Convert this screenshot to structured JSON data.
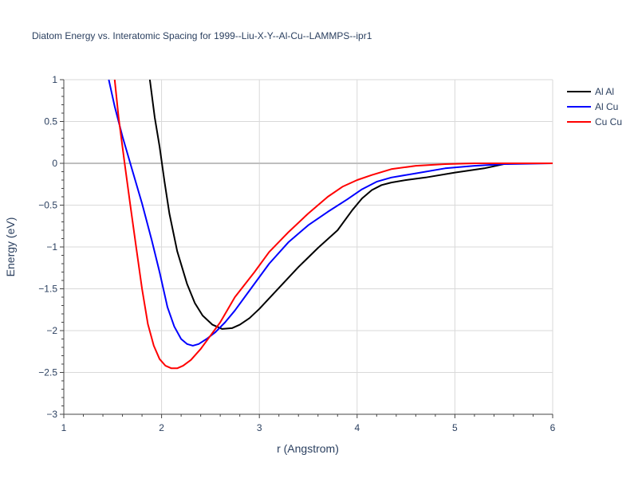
{
  "chart_data": {
    "type": "line",
    "title": "Diatom Energy vs. Interatomic Spacing for 1999--Liu-X-Y--Al-Cu--LAMMPS--ipr1",
    "xlabel": "r (Angstrom)",
    "ylabel": "Energy (eV)",
    "xlim": [
      1,
      6
    ],
    "ylim": [
      -3,
      1
    ],
    "xticks": [
      1,
      2,
      3,
      4,
      5,
      6
    ],
    "xtick_labels": [
      "1",
      "2",
      "3",
      "4",
      "5",
      "6"
    ],
    "yticks": [
      1,
      0.5,
      0,
      -0.5,
      -1,
      -1.5,
      -2,
      -2.5,
      -3
    ],
    "ytick_labels": [
      "1",
      "0.5",
      "0",
      "−0.5",
      "−1",
      "−1.5",
      "−2",
      "−2.5",
      "−3"
    ],
    "grid": true,
    "legend_position": "top-right",
    "series": [
      {
        "name": "Al Al",
        "color": "#000000",
        "x": [
          1.88,
          1.93,
          1.98,
          2.03,
          2.08,
          2.16,
          2.26,
          2.34,
          2.42,
          2.52,
          2.62,
          2.72,
          2.8,
          2.9,
          3.0,
          3.2,
          3.4,
          3.6,
          3.8,
          3.95,
          4.05,
          4.15,
          4.25,
          4.35,
          4.5,
          4.7,
          5.0,
          5.3,
          5.5,
          5.6,
          6.0
        ],
        "y": [
          1.0,
          0.55,
          0.2,
          -0.22,
          -0.6,
          -1.05,
          -1.44,
          -1.67,
          -1.82,
          -1.93,
          -1.98,
          -1.97,
          -1.93,
          -1.85,
          -1.74,
          -1.49,
          -1.24,
          -1.01,
          -0.8,
          -0.56,
          -0.42,
          -0.32,
          -0.26,
          -0.23,
          -0.2,
          -0.17,
          -0.11,
          -0.06,
          -0.01,
          0.0,
          0.0
        ]
      },
      {
        "name": "Al Cu",
        "color": "#0000ff",
        "x": [
          1.46,
          1.52,
          1.6,
          1.7,
          1.8,
          1.9,
          1.98,
          2.06,
          2.13,
          2.2,
          2.26,
          2.32,
          2.38,
          2.46,
          2.55,
          2.65,
          2.75,
          2.9,
          3.1,
          3.3,
          3.5,
          3.7,
          3.9,
          4.05,
          4.2,
          4.35,
          4.6,
          4.9,
          5.2,
          5.5,
          6.0
        ],
        "y": [
          1.0,
          0.68,
          0.32,
          -0.08,
          -0.48,
          -0.92,
          -1.3,
          -1.72,
          -1.95,
          -2.1,
          -2.16,
          -2.18,
          -2.16,
          -2.1,
          -2.02,
          -1.9,
          -1.76,
          -1.52,
          -1.2,
          -0.94,
          -0.74,
          -0.58,
          -0.43,
          -0.31,
          -0.22,
          -0.17,
          -0.12,
          -0.06,
          -0.03,
          -0.01,
          0.0
        ]
      },
      {
        "name": "Cu Cu",
        "color": "#ff0000",
        "x": [
          1.52,
          1.56,
          1.62,
          1.68,
          1.74,
          1.8,
          1.86,
          1.92,
          1.98,
          2.04,
          2.1,
          2.16,
          2.22,
          2.3,
          2.4,
          2.5,
          2.6,
          2.75,
          2.95,
          3.1,
          3.3,
          3.5,
          3.7,
          3.85,
          4.0,
          4.15,
          4.35,
          4.6,
          4.9,
          5.2,
          6.0
        ],
        "y": [
          1.0,
          0.55,
          0.02,
          -0.5,
          -1.0,
          -1.5,
          -1.92,
          -2.18,
          -2.34,
          -2.42,
          -2.45,
          -2.45,
          -2.42,
          -2.35,
          -2.22,
          -2.06,
          -1.9,
          -1.6,
          -1.3,
          -1.06,
          -0.82,
          -0.6,
          -0.4,
          -0.28,
          -0.2,
          -0.14,
          -0.07,
          -0.03,
          -0.01,
          0.0,
          0.0
        ]
      }
    ]
  }
}
